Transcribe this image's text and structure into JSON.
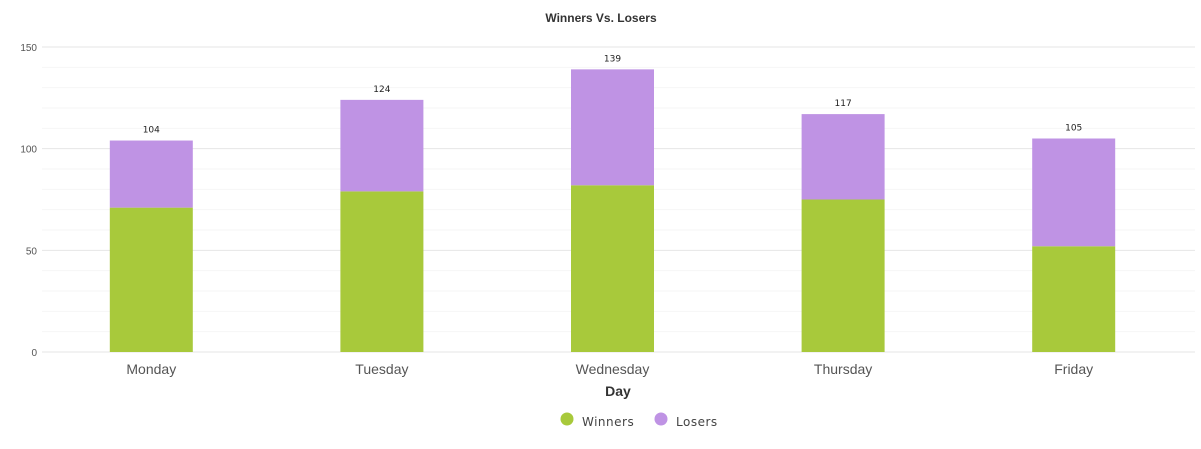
{
  "chart_data": {
    "type": "bar",
    "stacked": true,
    "title": "Winners Vs. Losers",
    "xlabel": "Day",
    "ylabel": "",
    "categories": [
      "Monday",
      "Tuesday",
      "Wednesday",
      "Thursday",
      "Friday"
    ],
    "series": [
      {
        "name": "Winners",
        "values": [
          71,
          79,
          82,
          75,
          52
        ],
        "color": "#a8c93b"
      },
      {
        "name": "Losers",
        "values": [
          33,
          45,
          57,
          42,
          53
        ],
        "color": "#bf93e4"
      }
    ],
    "totals": [
      104,
      124,
      139,
      117,
      105
    ],
    "ylim": [
      0,
      150
    ],
    "yticks": [
      0,
      50,
      100,
      150
    ],
    "grid": true,
    "legend": "bottom-center"
  }
}
